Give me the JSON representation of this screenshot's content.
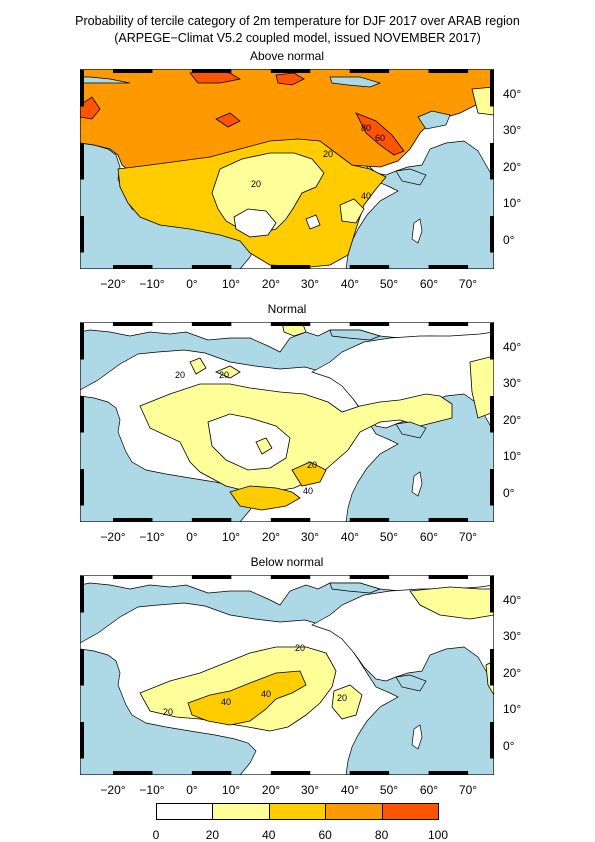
{
  "title": "Probability of tercile category of 2m temperature for DJF 2017 over ARAB region",
  "subtitle": "(ARPEGE−Climat V5.2 coupled model, issued NOVEMBER  2017)",
  "panels": [
    {
      "name": "Above normal",
      "contour_labels": [
        "20",
        "20",
        "40",
        "60",
        "80"
      ]
    },
    {
      "name": "Normal",
      "contour_labels": [
        "20",
        "20",
        "20",
        "40"
      ]
    },
    {
      "name": "Below normal",
      "contour_labels": [
        "20",
        "20",
        "20",
        "40",
        "40"
      ]
    }
  ],
  "lon_labels": [
    "−20°",
    "−10°",
    "0°",
    "10°",
    "20°",
    "30°",
    "40°",
    "50°",
    "60°",
    "70°"
  ],
  "lat_labels": [
    "40°",
    "30°",
    "20°",
    "10°",
    "0°"
  ],
  "colorbar": {
    "ticks": [
      "0",
      "20",
      "40",
      "60",
      "80",
      "100"
    ],
    "colors": [
      "#ffffff",
      "#ffff99",
      "#ffcc00",
      "#ff9900",
      "#ff5500"
    ]
  },
  "colors": {
    "ocean": "#add8e6",
    "land": "#ffffff"
  }
}
